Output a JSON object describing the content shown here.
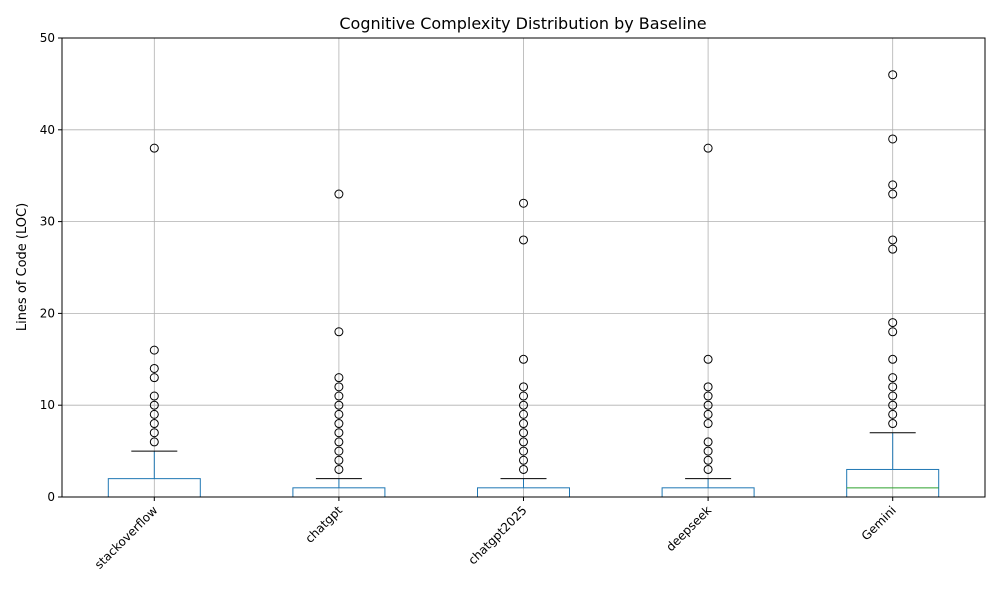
{
  "chart_data": {
    "type": "box",
    "title": "Cognitive Complexity Distribution by Baseline",
    "xlabel": "",
    "ylabel": "Lines of Code (LOC)",
    "ylim": [
      0,
      50
    ],
    "yticks": [
      0,
      10,
      20,
      30,
      40,
      50
    ],
    "grid": true,
    "colors": {
      "box": "#1f77b4",
      "median": "#2ca02c",
      "whisker_cap": "#000000",
      "grid": "#b0b0b0",
      "flier": "#000000"
    },
    "categories": [
      "stackoverflow",
      "chatgpt",
      "chatgpt2025",
      "deepseek",
      "Gemini"
    ],
    "boxes": [
      {
        "name": "stackoverflow",
        "min": 0,
        "q1": 0,
        "median": 0,
        "q3": 2,
        "whisker_high": 5,
        "fliers": [
          6,
          7,
          8,
          9,
          10,
          11,
          13,
          14,
          16,
          38
        ]
      },
      {
        "name": "chatgpt",
        "min": 0,
        "q1": 0,
        "median": 0,
        "q3": 1,
        "whisker_high": 2,
        "fliers": [
          3,
          4,
          5,
          6,
          7,
          8,
          9,
          10,
          11,
          12,
          13,
          18,
          33
        ]
      },
      {
        "name": "chatgpt2025",
        "min": 0,
        "q1": 0,
        "median": 0,
        "q3": 1,
        "whisker_high": 2,
        "fliers": [
          3,
          4,
          5,
          6,
          7,
          8,
          9,
          10,
          11,
          12,
          15,
          28,
          32
        ]
      },
      {
        "name": "deepseek",
        "min": 0,
        "q1": 0,
        "median": 0,
        "q3": 1,
        "whisker_high": 2,
        "fliers": [
          3,
          4,
          5,
          6,
          8,
          9,
          10,
          11,
          12,
          15,
          38
        ]
      },
      {
        "name": "Gemini",
        "min": 0,
        "q1": 0,
        "median": 1,
        "q3": 3,
        "whisker_high": 7,
        "fliers": [
          8,
          9,
          10,
          11,
          12,
          13,
          15,
          18,
          19,
          27,
          28,
          33,
          34,
          39,
          46
        ]
      }
    ]
  }
}
